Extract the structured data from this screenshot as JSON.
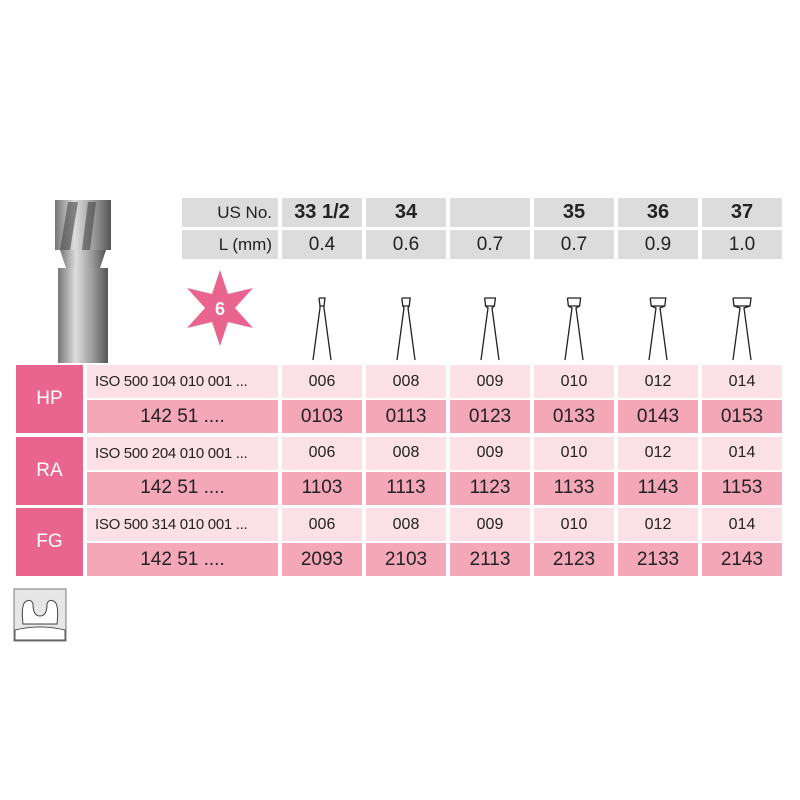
{
  "header": {
    "us_label": "US No.",
    "len_label": "L (mm)",
    "us_numbers": [
      "33 1/2",
      "34",
      "",
      "35",
      "36",
      "37"
    ],
    "lengths": [
      "0.4",
      "0.6",
      "0.7",
      "0.7",
      "0.9",
      "1.0"
    ]
  },
  "badge": {
    "value": "6",
    "color": "#e9658f"
  },
  "rows": [
    {
      "type": "HP",
      "iso": "ISO 500 104 010 001 ...",
      "ref": "142 51 ....",
      "sizes": [
        "006",
        "008",
        "009",
        "010",
        "012",
        "014"
      ],
      "codes": [
        "0103",
        "0113",
        "0123",
        "0133",
        "0143",
        "0153"
      ]
    },
    {
      "type": "RA",
      "iso": "ISO 500 204 010 001 ...",
      "ref": "142 51 ....",
      "sizes": [
        "006",
        "008",
        "009",
        "010",
        "012",
        "014"
      ],
      "codes": [
        "1103",
        "1113",
        "1123",
        "1133",
        "1143",
        "1153"
      ]
    },
    {
      "type": "FG",
      "iso": "ISO 500 314 010 001 ...",
      "ref": "142 51 ....",
      "sizes": [
        "006",
        "008",
        "009",
        "010",
        "012",
        "014"
      ],
      "codes": [
        "2093",
        "2103",
        "2113",
        "2123",
        "2133",
        "2143"
      ]
    }
  ],
  "colors": {
    "label": "#e9658f",
    "light": "#fbe1e7",
    "dark": "#f3a7b7",
    "grey": "#dcdcdc"
  }
}
